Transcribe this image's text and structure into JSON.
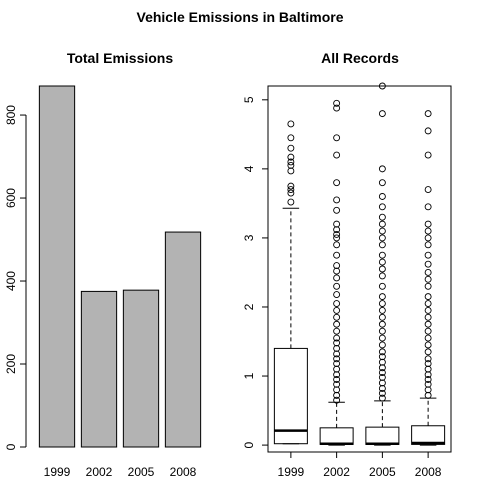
{
  "figure": {
    "title": "Vehicle Emissions in Baltimore"
  },
  "chart_data": [
    {
      "type": "bar",
      "title": "Total Emissions",
      "xlabel": "",
      "ylabel": "",
      "categories": [
        "1999",
        "2002",
        "2005",
        "2008"
      ],
      "values": [
        870,
        375,
        378,
        518
      ],
      "ylim": [
        0,
        870
      ],
      "yticks": [
        0,
        200,
        400,
        600,
        800
      ],
      "bar_color": "#b3b3b3",
      "grid": false
    },
    {
      "type": "box",
      "title": "All Records",
      "xlabel": "",
      "ylabel": "",
      "categories": [
        "1999",
        "2002",
        "2005",
        "2008"
      ],
      "ylim": [
        -0.1,
        5.2
      ],
      "yticks": [
        0,
        1,
        2,
        3,
        4,
        5
      ],
      "grid": false,
      "boxes": [
        {
          "category": "1999",
          "min": 0.02,
          "q1": 0.02,
          "median": 0.21,
          "q3": 1.4,
          "whisker_high": 3.43,
          "outliers": [
            3.52,
            3.65,
            3.7,
            3.75,
            3.97,
            4.05,
            4.1,
            4.17,
            4.3,
            4.45,
            4.65
          ]
        },
        {
          "category": "2002",
          "min": 0.0,
          "q1": 0.01,
          "median": 0.02,
          "q3": 0.25,
          "whisker_high": 0.62,
          "outliers": [
            0.65,
            0.72,
            0.8,
            0.88,
            0.95,
            1.02,
            1.1,
            1.18,
            1.25,
            1.32,
            1.4,
            1.48,
            1.55,
            1.65,
            1.75,
            1.85,
            1.95,
            2.05,
            2.18,
            2.3,
            2.42,
            2.52,
            2.6,
            2.75,
            2.9,
            3.0,
            3.05,
            3.12,
            3.2,
            3.4,
            3.55,
            3.8,
            4.2,
            4.45,
            4.88,
            4.95
          ]
        },
        {
          "category": "2005",
          "min": 0.0,
          "q1": 0.01,
          "median": 0.02,
          "q3": 0.26,
          "whisker_high": 0.64,
          "outliers": [
            0.68,
            0.75,
            0.82,
            0.9,
            0.98,
            1.05,
            1.12,
            1.2,
            1.28,
            1.35,
            1.45,
            1.55,
            1.65,
            1.75,
            1.85,
            1.95,
            2.05,
            2.15,
            2.3,
            2.45,
            2.55,
            2.65,
            2.75,
            2.9,
            3.0,
            3.1,
            3.2,
            3.3,
            3.45,
            3.6,
            3.8,
            4.0,
            4.8,
            5.2
          ]
        },
        {
          "category": "2008",
          "min": 0.0,
          "q1": 0.01,
          "median": 0.03,
          "q3": 0.28,
          "whisker_high": 0.68,
          "outliers": [
            0.72,
            0.8,
            0.88,
            0.95,
            1.02,
            1.1,
            1.18,
            1.25,
            1.35,
            1.45,
            1.55,
            1.65,
            1.75,
            1.85,
            1.95,
            2.05,
            2.15,
            2.3,
            2.4,
            2.5,
            2.62,
            2.75,
            2.9,
            3.0,
            3.1,
            3.2,
            3.45,
            3.7,
            4.2,
            4.55,
            4.8
          ]
        }
      ]
    }
  ]
}
